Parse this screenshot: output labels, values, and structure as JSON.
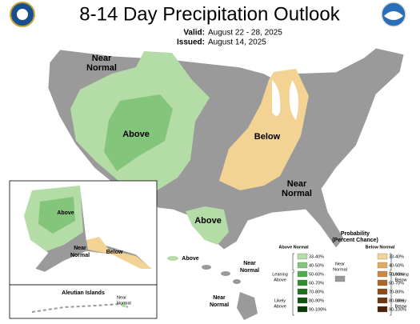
{
  "header": {
    "title": "8-14 Day Precipitation Outlook",
    "valid_label": "Valid:",
    "valid": "August 22 - 28, 2025",
    "issued_label": "Issued:",
    "issued": "August 14, 2025"
  },
  "conus_labels": [
    {
      "lines": [
        "Near",
        "Normal"
      ]
    },
    {
      "lines": [
        "Above"
      ]
    },
    {
      "lines": [
        "Below"
      ]
    },
    {
      "lines": [
        "Near",
        "Normal"
      ]
    },
    {
      "lines": [
        "Above"
      ]
    }
  ],
  "alaska_labels": [
    {
      "lines": [
        "Above"
      ]
    },
    {
      "lines": [
        "Near",
        "Normal"
      ]
    },
    {
      "lines": [
        "Below"
      ]
    }
  ],
  "aleutian": {
    "title": "Aleutian Islands",
    "label": [
      "Near",
      "Normal"
    ]
  },
  "hawaii_labels": [
    {
      "lines": [
        "Above"
      ]
    },
    {
      "lines": [
        "Near",
        "Normal"
      ]
    },
    {
      "lines": [
        "Near",
        "Normal"
      ]
    }
  ],
  "legend": {
    "title": [
      "Probability",
      "(Percent Chance)"
    ],
    "above_heading": "Above Normal",
    "below_heading": "Below Normal",
    "near": [
      "Near",
      "Normal"
    ],
    "near_color": "#999999",
    "leaning_above": [
      "Leaning",
      "Above"
    ],
    "likely_above": [
      "Likely",
      "Above"
    ],
    "leaning_below": [
      "Leaning",
      "Below"
    ],
    "likely_below": [
      "Likely",
      "Below"
    ],
    "bins": [
      "33-40%",
      "40-50%",
      "50-60%",
      "60-70%",
      "70-80%",
      "80-90%",
      "90-100%"
    ],
    "above_colors": [
      "#b4dca6",
      "#84c57c",
      "#52ab4f",
      "#2f8c2f",
      "#1f6f1f",
      "#115411",
      "#083a08"
    ],
    "below_colors": [
      "#f2d394",
      "#dfab65",
      "#c98a42",
      "#ab662a",
      "#8c4b1b",
      "#6e3511",
      "#4d2308"
    ]
  }
}
